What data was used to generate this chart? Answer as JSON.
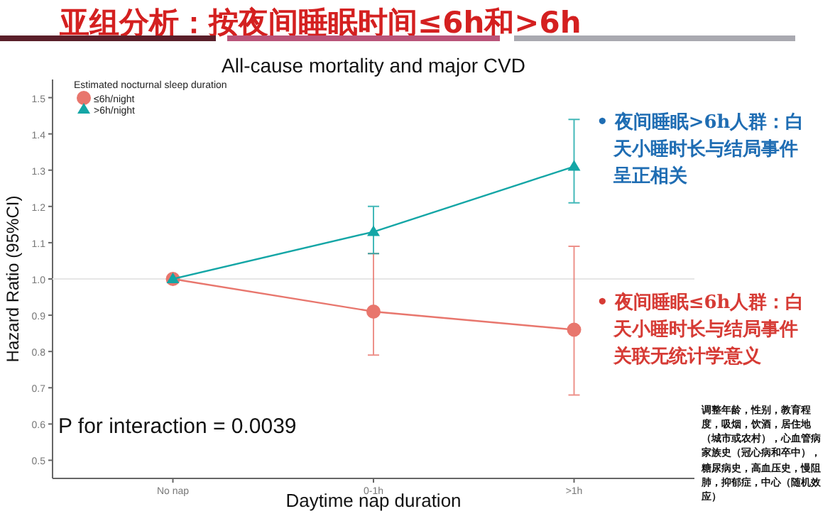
{
  "chart_data": {
    "type": "line",
    "title": "亚组分析：按夜间睡眠时间≤6h和>6h",
    "subtitle": "All-cause mortality and major CVD",
    "xlabel": "Daytime nap duration",
    "ylabel": "Hazard Ratio (95%CI)",
    "legend_title": "Estimated nocturnal sleep duration",
    "legend": "top left",
    "grid": false,
    "categories": [
      "No nap",
      "0-1h",
      ">1h"
    ],
    "series": [
      {
        "name": "≤6h/night",
        "color": "#e8766d",
        "marker": "circle",
        "values": [
          1.0,
          0.91,
          0.86
        ],
        "errors": [
          null,
          [
            0.79,
            1.07
          ],
          [
            0.68,
            1.09
          ]
        ]
      },
      {
        "name": ">6h/night",
        "color": "#14a6a6",
        "marker": "triangle",
        "values": [
          1.0,
          1.13,
          1.31
        ],
        "errors": [
          null,
          [
            1.07,
            1.2
          ],
          [
            1.21,
            1.44
          ]
        ]
      }
    ],
    "ylim": [
      0.45,
      1.55
    ],
    "yticks": [
      0.5,
      0.6,
      0.7,
      0.8,
      0.9,
      {
        "value": 1.0,
        "label": "1.0"
      },
      1.1,
      1.2,
      1.3,
      1.4,
      1.5
    ],
    "ref_lines": [
      {
        "axis": "y",
        "value": 1.0,
        "color": "#e6e6e6"
      }
    ],
    "annotations": [
      "P for interaction = 0.0039",
      "• 夜间睡眠>6h人群：白天小睡时长与结局事件呈正相关",
      "• 夜间睡眠≤6h人群：白天小睡时长与结局事件关联无统计学意义",
      "调整年龄，性别，教育程度，吸烟，饮酒，居住地（城市或农村），心血管病家族史（冠心病和卒中），糖尿病史，高血压史，慢阻肺，抑郁症，中心（随机效应）"
    ]
  }
}
